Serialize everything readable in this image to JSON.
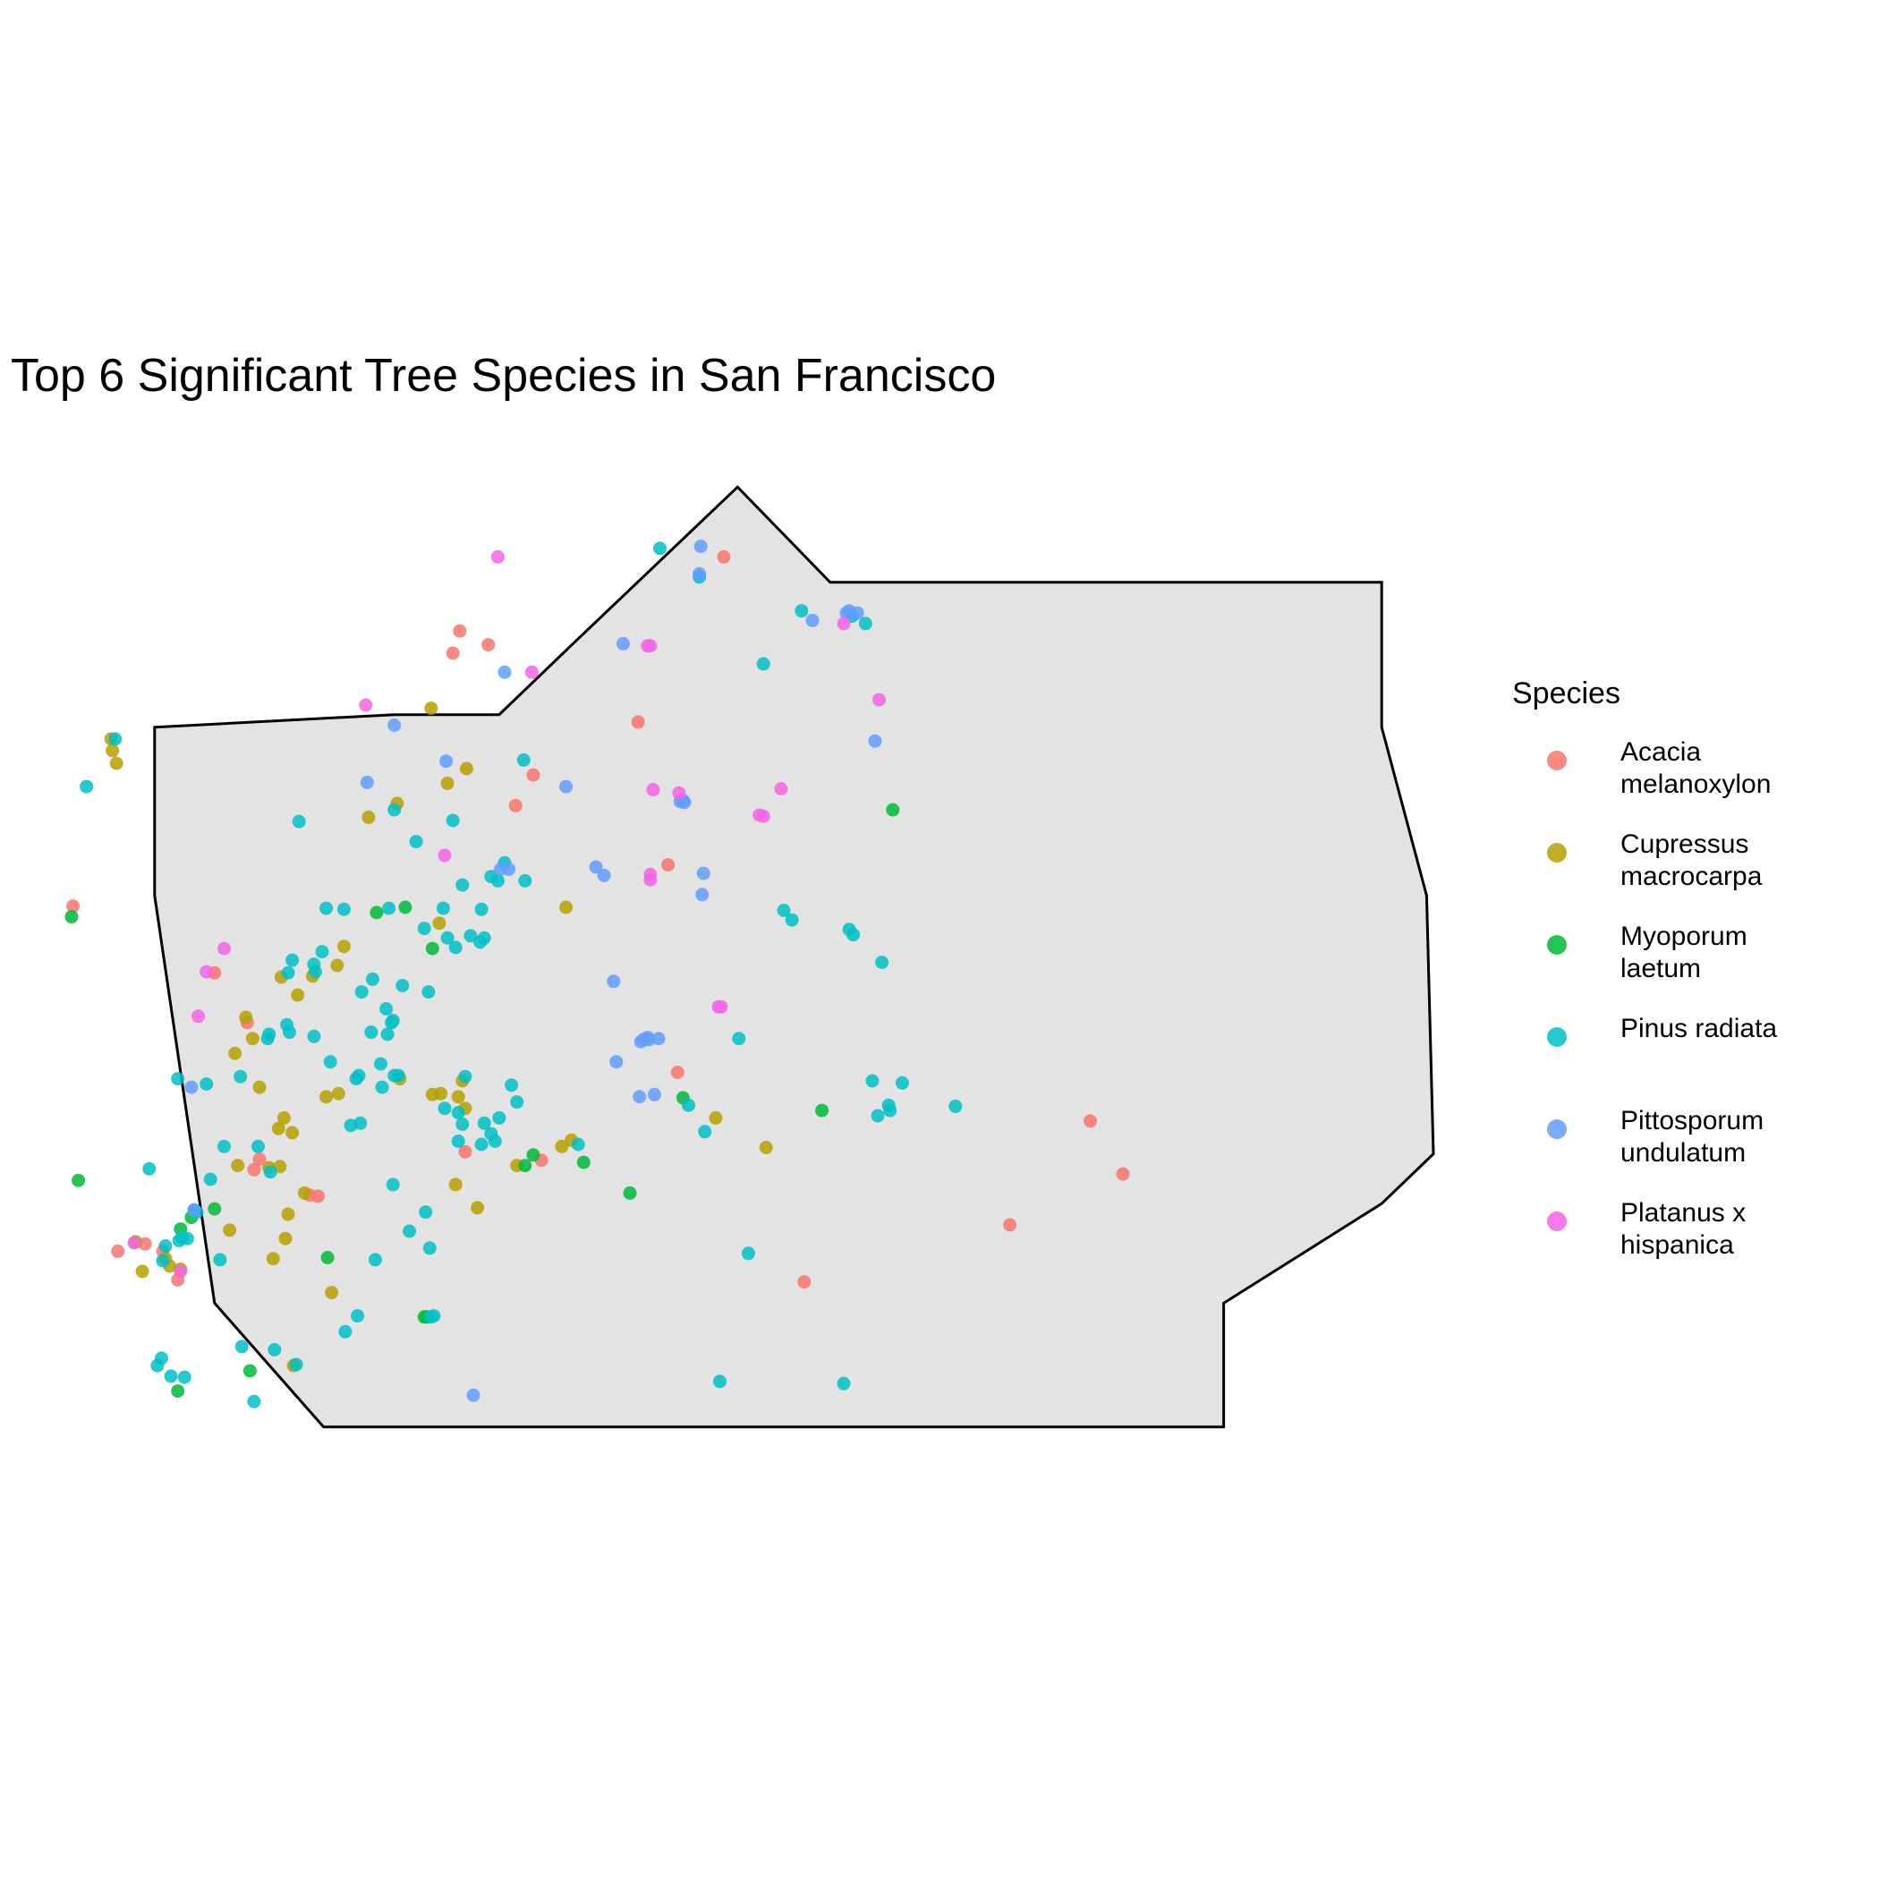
{
  "title": "Top 6 Significant Tree Species in San Francisco",
  "legend": {
    "title": "Species",
    "placement": "right",
    "entries": [
      {
        "label": "Acacia melanoxylon",
        "color": "#F8766D"
      },
      {
        "label": "Cupressus macrocarpa",
        "color": "#B79F00"
      },
      {
        "label": "Myoporum laetum",
        "color": "#00BA38"
      },
      {
        "label": "Pinus radiata",
        "color": "#00BFC4"
      },
      {
        "label": "Pittosporum undulatum",
        "color": "#619CFF"
      },
      {
        "label": "Platanus x hispanica",
        "color": "#F564E3"
      }
    ]
  },
  "chart_data": {
    "type": "scatter",
    "boundary_fill": "#E3E3E3",
    "boundary_stroke": "#000000",
    "x_range": [
      0,
      1
    ],
    "y_range": [
      0,
      1
    ],
    "boundary": [
      [
        0.237,
        0.244
      ],
      [
        0.314,
        0.244
      ],
      [
        0.365,
        0.181
      ],
      [
        0.489,
        0.029
      ],
      [
        0.557,
        0.119
      ],
      [
        0.962,
        0.119
      ],
      [
        0.962,
        0.256
      ],
      [
        0.995,
        0.415
      ],
      [
        1.0,
        0.659
      ],
      [
        0.962,
        0.706
      ],
      [
        0.846,
        0.8
      ],
      [
        0.846,
        0.917
      ],
      [
        0.185,
        0.917
      ],
      [
        0.105,
        0.8
      ],
      [
        0.061,
        0.415
      ],
      [
        0.061,
        0.256
      ]
    ],
    "series": [
      {
        "name": "Acacia melanoxylon",
        "color": "#F8766D",
        "points": [
          [
            0.479,
            0.095
          ],
          [
            0.285,
            0.165
          ],
          [
            0.306,
            0.178
          ],
          [
            0.28,
            0.186
          ],
          [
            0.416,
            0.251
          ],
          [
            0.339,
            0.301
          ],
          [
            0.326,
            0.33
          ],
          [
            0.438,
            0.386
          ],
          [
            0.001,
            0.425
          ],
          [
            0.105,
            0.488
          ],
          [
            0.129,
            0.535
          ],
          [
            0.445,
            0.582
          ],
          [
            0.289,
            0.657
          ],
          [
            0.345,
            0.665
          ],
          [
            0.138,
            0.664
          ],
          [
            0.134,
            0.674
          ],
          [
            0.175,
            0.698
          ],
          [
            0.181,
            0.699
          ],
          [
            0.748,
            0.628
          ],
          [
            0.772,
            0.678
          ],
          [
            0.689,
            0.726
          ],
          [
            0.034,
            0.751
          ],
          [
            0.067,
            0.751
          ],
          [
            0.054,
            0.744
          ],
          [
            0.078,
            0.778
          ],
          [
            0.538,
            0.78
          ]
        ]
      },
      {
        "name": "Cupressus macrocarpa",
        "color": "#B79F00",
        "points": [
          [
            0.03,
            0.278
          ],
          [
            0.029,
            0.267
          ],
          [
            0.033,
            0.29
          ],
          [
            0.264,
            0.238
          ],
          [
            0.29,
            0.295
          ],
          [
            0.239,
            0.328
          ],
          [
            0.276,
            0.309
          ],
          [
            0.218,
            0.341
          ],
          [
            0.2,
            0.463
          ],
          [
            0.363,
            0.426
          ],
          [
            0.27,
            0.441
          ],
          [
            0.195,
            0.481
          ],
          [
            0.154,
            0.492
          ],
          [
            0.128,
            0.53
          ],
          [
            0.166,
            0.509
          ],
          [
            0.177,
            0.491
          ],
          [
            0.133,
            0.55
          ],
          [
            0.12,
            0.564
          ],
          [
            0.138,
            0.596
          ],
          [
            0.271,
            0.602
          ],
          [
            0.265,
            0.603
          ],
          [
            0.284,
            0.605
          ],
          [
            0.241,
            0.588
          ],
          [
            0.289,
            0.616
          ],
          [
            0.287,
            0.59
          ],
          [
            0.187,
            0.605
          ],
          [
            0.156,
            0.625
          ],
          [
            0.162,
            0.639
          ],
          [
            0.36,
            0.652
          ],
          [
            0.327,
            0.67
          ],
          [
            0.152,
            0.635
          ],
          [
            0.171,
            0.696
          ],
          [
            0.298,
            0.71
          ],
          [
            0.282,
            0.688
          ],
          [
            0.367,
            0.646
          ],
          [
            0.51,
            0.653
          ],
          [
            0.473,
            0.625
          ],
          [
            0.145,
            0.672
          ],
          [
            0.122,
            0.67
          ],
          [
            0.153,
            0.671
          ],
          [
            0.196,
            0.602
          ],
          [
            0.159,
            0.716
          ],
          [
            0.052,
            0.77
          ],
          [
            0.047,
            0.742
          ],
          [
            0.157,
            0.739
          ],
          [
            0.116,
            0.731
          ],
          [
            0.072,
            0.765
          ],
          [
            0.08,
            0.768
          ],
          [
            0.069,
            0.758
          ],
          [
            0.191,
            0.79
          ],
          [
            0.163,
            0.859
          ],
          [
            0.148,
            0.758
          ]
        ]
      },
      {
        "name": "Myoporum laetum",
        "color": "#00BA38",
        "points": [
          [
            0.603,
            0.334
          ],
          [
            0.0,
            0.435
          ],
          [
            0.224,
            0.431
          ],
          [
            0.245,
            0.426
          ],
          [
            0.265,
            0.465
          ],
          [
            0.449,
            0.606
          ],
          [
            0.551,
            0.618
          ],
          [
            0.333,
            0.67
          ],
          [
            0.376,
            0.667
          ],
          [
            0.41,
            0.696
          ],
          [
            0.005,
            0.684
          ],
          [
            0.105,
            0.711
          ],
          [
            0.088,
            0.719
          ],
          [
            0.08,
            0.73
          ],
          [
            0.188,
            0.757
          ],
          [
            0.261,
            0.813
          ],
          [
            0.259,
            0.813
          ],
          [
            0.078,
            0.883
          ],
          [
            0.131,
            0.864
          ],
          [
            0.339,
            0.66
          ]
        ]
      },
      {
        "name": "Pinus radiata",
        "color": "#00BFC4",
        "points": [
          [
            0.432,
            0.087
          ],
          [
            0.461,
            0.114
          ],
          [
            0.536,
            0.146
          ],
          [
            0.573,
            0.151
          ],
          [
            0.583,
            0.158
          ],
          [
            0.508,
            0.196
          ],
          [
            0.032,
            0.267
          ],
          [
            0.011,
            0.312
          ],
          [
            0.167,
            0.345
          ],
          [
            0.237,
            0.334
          ],
          [
            0.332,
            0.287
          ],
          [
            0.253,
            0.364
          ],
          [
            0.28,
            0.344
          ],
          [
            0.318,
            0.384
          ],
          [
            0.313,
            0.401
          ],
          [
            0.333,
            0.401
          ],
          [
            0.287,
            0.405
          ],
          [
            0.187,
            0.427
          ],
          [
            0.2,
            0.428
          ],
          [
            0.233,
            0.427
          ],
          [
            0.301,
            0.428
          ],
          [
            0.273,
            0.427
          ],
          [
            0.276,
            0.455
          ],
          [
            0.259,
            0.446
          ],
          [
            0.293,
            0.453
          ],
          [
            0.303,
            0.455
          ],
          [
            0.282,
            0.464
          ],
          [
            0.3,
            0.459
          ],
          [
            0.184,
            0.468
          ],
          [
            0.162,
            0.476
          ],
          [
            0.178,
            0.48
          ],
          [
            0.179,
            0.487
          ],
          [
            0.159,
            0.488
          ],
          [
            0.221,
            0.494
          ],
          [
            0.243,
            0.5
          ],
          [
            0.213,
            0.506
          ],
          [
            0.262,
            0.506
          ],
          [
            0.231,
            0.522
          ],
          [
            0.236,
            0.533
          ],
          [
            0.235,
            0.535
          ],
          [
            0.178,
            0.548
          ],
          [
            0.22,
            0.544
          ],
          [
            0.232,
            0.546
          ],
          [
            0.158,
            0.537
          ],
          [
            0.16,
            0.544
          ],
          [
            0.145,
            0.546
          ],
          [
            0.144,
            0.55
          ],
          [
            0.19,
            0.572
          ],
          [
            0.227,
            0.574
          ],
          [
            0.211,
            0.585
          ],
          [
            0.237,
            0.585
          ],
          [
            0.24,
            0.585
          ],
          [
            0.209,
            0.588
          ],
          [
            0.289,
            0.586
          ],
          [
            0.303,
            0.63
          ],
          [
            0.314,
            0.625
          ],
          [
            0.311,
            0.647
          ],
          [
            0.301,
            0.65
          ],
          [
            0.284,
            0.647
          ],
          [
            0.274,
            0.616
          ],
          [
            0.284,
            0.62
          ],
          [
            0.212,
            0.63
          ],
          [
            0.137,
            0.652
          ],
          [
            0.112,
            0.652
          ],
          [
            0.124,
            0.586
          ],
          [
            0.078,
            0.588
          ],
          [
            0.099,
            0.593
          ],
          [
            0.146,
            0.676
          ],
          [
            0.102,
            0.683
          ],
          [
            0.205,
            0.632
          ],
          [
            0.228,
            0.596
          ],
          [
            0.287,
            0.631
          ],
          [
            0.308,
            0.64
          ],
          [
            0.372,
            0.65
          ],
          [
            0.327,
            0.61
          ],
          [
            0.323,
            0.594
          ],
          [
            0.236,
            0.688
          ],
          [
            0.248,
            0.732
          ],
          [
            0.26,
            0.714
          ],
          [
            0.263,
            0.748
          ],
          [
            0.223,
            0.759
          ],
          [
            0.21,
            0.812
          ],
          [
            0.264,
            0.813
          ],
          [
            0.266,
            0.812
          ],
          [
            0.201,
            0.827
          ],
          [
            0.149,
            0.844
          ],
          [
            0.125,
            0.841
          ],
          [
            0.165,
            0.858
          ],
          [
            0.067,
            0.76
          ],
          [
            0.081,
            0.738
          ],
          [
            0.079,
            0.741
          ],
          [
            0.085,
            0.739
          ],
          [
            0.069,
            0.746
          ],
          [
            0.09,
            0.712
          ],
          [
            0.092,
            0.714
          ],
          [
            0.109,
            0.759
          ],
          [
            0.063,
            0.859
          ],
          [
            0.066,
            0.852
          ],
          [
            0.073,
            0.869
          ],
          [
            0.083,
            0.87
          ],
          [
            0.134,
            0.893
          ],
          [
            0.057,
            0.673
          ],
          [
            0.465,
            0.638
          ],
          [
            0.588,
            0.59
          ],
          [
            0.61,
            0.592
          ],
          [
            0.649,
            0.614
          ],
          [
            0.595,
            0.478
          ],
          [
            0.571,
            0.447
          ],
          [
            0.529,
            0.438
          ],
          [
            0.523,
            0.429
          ],
          [
            0.49,
            0.55
          ],
          [
            0.453,
            0.613
          ],
          [
            0.497,
            0.753
          ],
          [
            0.567,
            0.876
          ],
          [
            0.476,
            0.874
          ],
          [
            0.592,
            0.623
          ],
          [
            0.6,
            0.613
          ],
          [
            0.601,
            0.618
          ],
          [
            0.574,
            0.452
          ],
          [
            0.308,
            0.397
          ]
        ]
      },
      {
        "name": "Pittosporum undulatum",
        "color": "#619CFF",
        "points": [
          [
            0.462,
            0.085
          ],
          [
            0.461,
            0.111
          ],
          [
            0.405,
            0.177
          ],
          [
            0.544,
            0.155
          ],
          [
            0.569,
            0.148
          ],
          [
            0.571,
            0.146
          ],
          [
            0.577,
            0.148
          ],
          [
            0.318,
            0.204
          ],
          [
            0.237,
            0.254
          ],
          [
            0.275,
            0.288
          ],
          [
            0.217,
            0.308
          ],
          [
            0.363,
            0.312
          ],
          [
            0.449,
            0.325
          ],
          [
            0.447,
            0.326
          ],
          [
            0.45,
            0.327
          ],
          [
            0.385,
            0.388
          ],
          [
            0.391,
            0.396
          ],
          [
            0.321,
            0.39
          ],
          [
            0.315,
            0.39
          ],
          [
            0.464,
            0.394
          ],
          [
            0.463,
            0.414
          ],
          [
            0.59,
            0.269
          ],
          [
            0.398,
            0.496
          ],
          [
            0.423,
            0.549
          ],
          [
            0.424,
            0.551
          ],
          [
            0.42,
            0.551
          ],
          [
            0.418,
            0.553
          ],
          [
            0.4,
            0.572
          ],
          [
            0.417,
            0.605
          ],
          [
            0.428,
            0.603
          ],
          [
            0.088,
            0.596
          ],
          [
            0.09,
            0.712
          ],
          [
            0.295,
            0.887
          ],
          [
            0.431,
            0.55
          ]
        ]
      },
      {
        "name": "Platanus x hispanica",
        "color": "#F564E3",
        "points": [
          [
            0.313,
            0.095
          ],
          [
            0.423,
            0.179
          ],
          [
            0.425,
            0.179
          ],
          [
            0.338,
            0.204
          ],
          [
            0.216,
            0.235
          ],
          [
            0.427,
            0.315
          ],
          [
            0.446,
            0.318
          ],
          [
            0.521,
            0.314
          ],
          [
            0.505,
            0.339
          ],
          [
            0.508,
            0.34
          ],
          [
            0.274,
            0.377
          ],
          [
            0.425,
            0.395
          ],
          [
            0.425,
            0.4
          ],
          [
            0.567,
            0.158
          ],
          [
            0.593,
            0.23
          ],
          [
            0.475,
            0.52
          ],
          [
            0.477,
            0.52
          ],
          [
            0.112,
            0.465
          ],
          [
            0.099,
            0.487
          ],
          [
            0.093,
            0.529
          ],
          [
            0.046,
            0.743
          ],
          [
            0.08,
            0.77
          ]
        ]
      }
    ]
  }
}
